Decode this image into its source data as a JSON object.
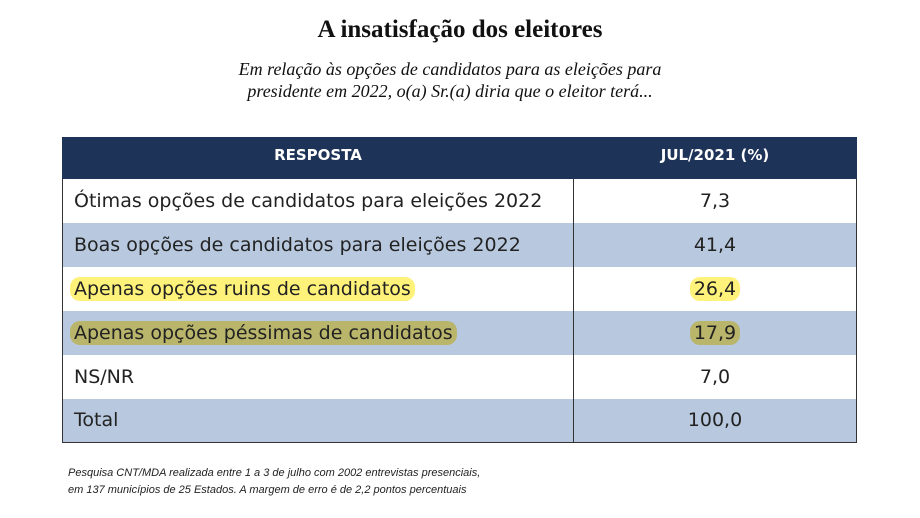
{
  "title": "A insatisfação dos eleitores",
  "subtitle_line1": "Em relação às opções de candidatos para as eleições para",
  "subtitle_line2": "presidente em 2022, o(a) Sr.(a) diria que o eleitor terá...",
  "colors": {
    "header_bg": "#1e3358",
    "shaded_row": "#b8c9df",
    "highlight_yellow": "#fff27a",
    "highlight_olive": "#b9b56a"
  },
  "chart_data": {
    "type": "table",
    "columns": [
      "RESPOSTA",
      "JUL/2021 (%)"
    ],
    "rows": [
      {
        "label": "Ótimas opções de candidatos para eleições 2022",
        "value": "7,3"
      },
      {
        "label": "Boas opções de candidatos para eleições 2022",
        "value": "41,4"
      },
      {
        "label": "Apenas opções ruins de candidatos",
        "value": "26,4"
      },
      {
        "label": "Apenas opções péssimas de candidatos",
        "value": "17,9"
      },
      {
        "label": "NS/NR",
        "value": "7,0"
      },
      {
        "label": "Total",
        "value": "100,0"
      }
    ]
  },
  "source_line1": "Pesquisa CNT/MDA realizada entre 1 a 3 de julho com 2002 entrevistas presenciais,",
  "source_line2": "em 137 municípios de 25 Estados. A margem de erro é de 2,2 pontos percentuais"
}
